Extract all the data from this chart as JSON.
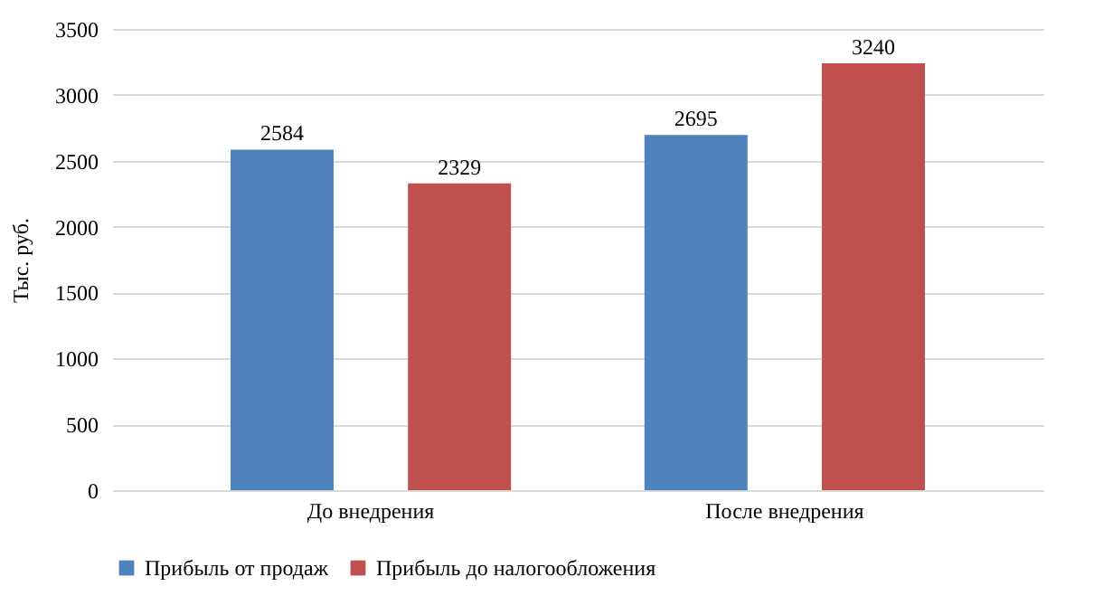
{
  "chart_data": {
    "type": "bar",
    "ylabel": "Тыс. руб.",
    "categories": [
      "До внедрения",
      "После внедрения"
    ],
    "series": [
      {
        "name": "Прибыль от продаж",
        "color": "#4f81bd",
        "values": [
          2584,
          2695
        ]
      },
      {
        "name": "Прибыль до налогообложения",
        "color": "#c0504d",
        "values": [
          2329,
          3240
        ]
      }
    ],
    "ylim": [
      0,
      3500
    ],
    "yticks": [
      0,
      500,
      1000,
      1500,
      2000,
      2500,
      3000,
      3500
    ],
    "grid": "y",
    "legend": "bottom",
    "data_labels": true
  }
}
